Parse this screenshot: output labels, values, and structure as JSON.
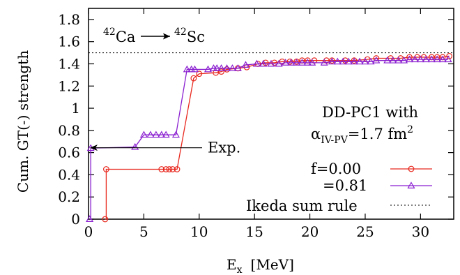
{
  "chart_data": {
    "type": "line",
    "xlabel": "E",
    "xlabel_sub": "x",
    "xlabel_unit": "[MeV]",
    "ylabel": "Cum. GT(-) strength",
    "xlim": [
      0,
      33
    ],
    "ylim": [
      0,
      1.9
    ],
    "xticks": [
      0,
      5,
      10,
      15,
      20,
      25,
      30
    ],
    "yticks": [
      0,
      0.2,
      0.4,
      0.6,
      0.8,
      1,
      1.2,
      1.4,
      1.6,
      1.8
    ],
    "ytick_labels": [
      "0",
      "0.2",
      "0.4",
      "0.6",
      "0.8",
      "1",
      "1.2",
      "1.4",
      "1.6",
      "1.8"
    ],
    "reaction": {
      "from_mass": "42",
      "from_el": "Ca",
      "to_mass": "42",
      "to_el": "Sc"
    },
    "model": {
      "line1": "DD-PC1 with",
      "alpha_sym": "α",
      "alpha_sub": "IV-PV",
      "alpha_value": "=1.7 fm",
      "alpha_exp": "2"
    },
    "exp_annotation": {
      "label": "Exp.",
      "value": 0.65
    },
    "ikeda": {
      "label": "Ikeda sum rule",
      "value": 1.5
    },
    "legend_position": "right",
    "series": [
      {
        "name": "f=0.00",
        "color": "#e8281e",
        "marker": "circle",
        "points": [
          [
            1.5,
            0.0
          ],
          [
            1.6,
            0.45
          ],
          [
            6.6,
            0.45
          ],
          [
            7.0,
            0.45
          ],
          [
            7.3,
            0.45
          ],
          [
            7.6,
            0.45
          ],
          [
            8.0,
            0.45
          ],
          [
            9.5,
            1.27
          ],
          [
            10.0,
            1.31
          ],
          [
            11.5,
            1.32
          ],
          [
            12.0,
            1.33
          ],
          [
            12.5,
            1.35
          ],
          [
            13.5,
            1.36
          ],
          [
            14.3,
            1.37
          ],
          [
            15.3,
            1.4
          ],
          [
            16.0,
            1.41
          ],
          [
            16.8,
            1.41
          ],
          [
            17.5,
            1.42
          ],
          [
            18.2,
            1.42
          ],
          [
            18.8,
            1.42
          ],
          [
            19.3,
            1.43
          ],
          [
            19.8,
            1.43
          ],
          [
            20.4,
            1.43
          ],
          [
            21.5,
            1.43
          ],
          [
            22.0,
            1.43
          ],
          [
            23.2,
            1.43
          ],
          [
            24.0,
            1.43
          ],
          [
            25.2,
            1.44
          ],
          [
            26.0,
            1.45
          ],
          [
            27.3,
            1.45
          ],
          [
            28.2,
            1.45
          ],
          [
            29.0,
            1.46
          ],
          [
            29.7,
            1.46
          ],
          [
            30.3,
            1.46
          ],
          [
            31.0,
            1.46
          ],
          [
            31.5,
            1.46
          ],
          [
            32.0,
            1.46
          ],
          [
            32.6,
            1.47
          ]
        ]
      },
      {
        "name": "=0.81",
        "color": "#8a1fd0",
        "marker": "triangle",
        "points": [
          [
            0.1,
            0.0
          ],
          [
            0.2,
            0.64
          ],
          [
            4.2,
            0.65
          ],
          [
            5.0,
            0.76
          ],
          [
            5.6,
            0.76
          ],
          [
            6.1,
            0.76
          ],
          [
            6.6,
            0.76
          ],
          [
            7.0,
            0.76
          ],
          [
            7.9,
            0.76
          ],
          [
            8.9,
            1.35
          ],
          [
            9.3,
            1.35
          ],
          [
            9.6,
            1.35
          ],
          [
            10.8,
            1.35
          ],
          [
            11.3,
            1.36
          ],
          [
            11.6,
            1.36
          ],
          [
            12.0,
            1.36
          ],
          [
            12.5,
            1.36
          ],
          [
            13.0,
            1.36
          ],
          [
            13.5,
            1.36
          ],
          [
            14.2,
            1.39
          ],
          [
            15.2,
            1.4
          ],
          [
            15.8,
            1.4
          ],
          [
            16.5,
            1.4
          ],
          [
            17.2,
            1.4
          ],
          [
            17.8,
            1.41
          ],
          [
            18.3,
            1.41
          ],
          [
            18.8,
            1.41
          ],
          [
            19.3,
            1.41
          ],
          [
            19.8,
            1.41
          ],
          [
            20.2,
            1.41
          ],
          [
            21.3,
            1.41
          ],
          [
            22.0,
            1.42
          ],
          [
            22.5,
            1.42
          ],
          [
            23.0,
            1.42
          ],
          [
            23.5,
            1.42
          ],
          [
            24.0,
            1.42
          ],
          [
            24.5,
            1.42
          ],
          [
            25.0,
            1.42
          ],
          [
            25.5,
            1.42
          ],
          [
            26.0,
            1.43
          ],
          [
            27.0,
            1.43
          ],
          [
            27.5,
            1.43
          ],
          [
            28.0,
            1.43
          ],
          [
            28.5,
            1.43
          ],
          [
            29.0,
            1.44
          ],
          [
            29.5,
            1.44
          ],
          [
            30.0,
            1.44
          ],
          [
            30.5,
            1.44
          ],
          [
            31.0,
            1.44
          ],
          [
            31.5,
            1.44
          ],
          [
            32.0,
            1.44
          ],
          [
            32.5,
            1.44
          ]
        ]
      }
    ]
  }
}
